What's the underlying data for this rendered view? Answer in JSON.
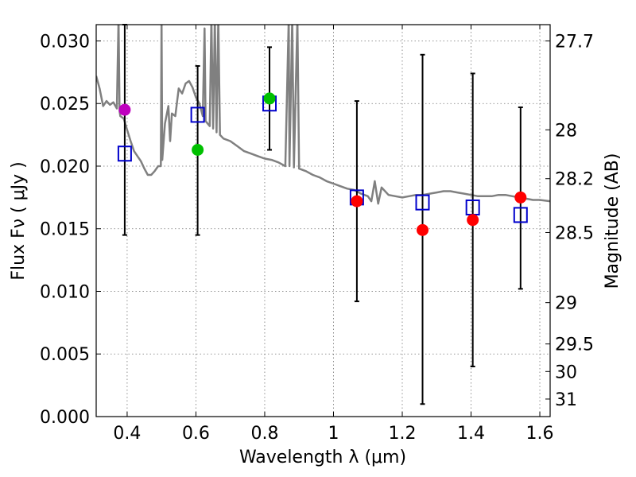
{
  "chart_data": {
    "type": "scatter",
    "title": "",
    "xlabel": "Wavelength  λ (μm)",
    "ylabel": "Flux  Fν  ( μJy )",
    "y2label": "Magnitude (AB)",
    "xlim": [
      0.31,
      1.63
    ],
    "ylim": [
      0.0,
      0.0313
    ],
    "grid": true,
    "xticks": [
      0.4,
      0.6,
      0.8,
      1.0,
      1.2,
      1.4,
      1.6
    ],
    "xtick_labels": [
      "0.4",
      "0.6",
      "0.8",
      "1",
      "1.2",
      "1.4",
      "1.6"
    ],
    "yticks": [
      0.0,
      0.005,
      0.01,
      0.015,
      0.02,
      0.025,
      0.03
    ],
    "ytick_labels": [
      "0.000",
      "0.005",
      "0.010",
      "0.015",
      "0.020",
      "0.025",
      "0.030"
    ],
    "mag_ticks": [
      {
        "label": "27.7",
        "flux": 0.03
      },
      {
        "label": "28",
        "flux": 0.0229
      },
      {
        "label": "28.2",
        "flux": 0.019
      },
      {
        "label": "28.5",
        "flux": 0.0147
      },
      {
        "label": "29",
        "flux": 0.0091
      },
      {
        "label": "29.5",
        "flux": 0.0058
      },
      {
        "label": "30",
        "flux": 0.0036
      },
      {
        "label": "31",
        "flux": 0.0014
      }
    ],
    "observed": [
      {
        "x": 0.393,
        "y": 0.0245,
        "color": "#bf00bf"
      },
      {
        "x": 0.605,
        "y": 0.0213,
        "color": "#00c000"
      },
      {
        "x": 0.814,
        "y": 0.0254,
        "color": "#00c000"
      },
      {
        "x": 1.068,
        "y": 0.0172,
        "color": "#ff0000"
      },
      {
        "x": 1.259,
        "y": 0.0149,
        "color": "#ff0000"
      },
      {
        "x": 1.405,
        "y": 0.0157,
        "color": "#ff0000"
      },
      {
        "x": 1.544,
        "y": 0.0175,
        "color": "#ff0000"
      }
    ],
    "errorbars": [
      {
        "x": 0.393,
        "low": 0.0145,
        "high": 0.0313
      },
      {
        "x": 0.605,
        "low": 0.0145,
        "high": 0.028
      },
      {
        "x": 0.814,
        "low": 0.0213,
        "high": 0.0295
      },
      {
        "x": 1.068,
        "low": 0.0092,
        "high": 0.0252
      },
      {
        "x": 1.259,
        "low": 0.001,
        "high": 0.0289
      },
      {
        "x": 1.405,
        "low": 0.004,
        "high": 0.0274
      },
      {
        "x": 1.544,
        "low": 0.0102,
        "high": 0.0247
      }
    ],
    "model_points": [
      {
        "x": 0.393,
        "y": 0.021
      },
      {
        "x": 0.605,
        "y": 0.0241
      },
      {
        "x": 0.814,
        "y": 0.025
      },
      {
        "x": 1.068,
        "y": 0.0175
      },
      {
        "x": 1.259,
        "y": 0.0171
      },
      {
        "x": 1.405,
        "y": 0.0167
      },
      {
        "x": 1.544,
        "y": 0.0161
      }
    ],
    "model_spectrum": [
      [
        0.31,
        0.0272
      ],
      [
        0.32,
        0.0262
      ],
      [
        0.33,
        0.0248
      ],
      [
        0.34,
        0.0252
      ],
      [
        0.35,
        0.0249
      ],
      [
        0.36,
        0.0251
      ],
      [
        0.37,
        0.0246
      ],
      [
        0.375,
        0.0318
      ],
      [
        0.378,
        0.0244
      ],
      [
        0.38,
        0.024
      ],
      [
        0.39,
        0.0238
      ],
      [
        0.4,
        0.0229
      ],
      [
        0.41,
        0.022
      ],
      [
        0.42,
        0.0212
      ],
      [
        0.43,
        0.0208
      ],
      [
        0.44,
        0.0204
      ],
      [
        0.45,
        0.0198
      ],
      [
        0.46,
        0.0193
      ],
      [
        0.47,
        0.0193
      ],
      [
        0.48,
        0.0196
      ],
      [
        0.49,
        0.02
      ],
      [
        0.498,
        0.02
      ],
      [
        0.5,
        0.0318
      ],
      [
        0.502,
        0.0205
      ],
      [
        0.51,
        0.0234
      ],
      [
        0.52,
        0.0248
      ],
      [
        0.525,
        0.022
      ],
      [
        0.53,
        0.0242
      ],
      [
        0.54,
        0.024
      ],
      [
        0.55,
        0.0262
      ],
      [
        0.56,
        0.0258
      ],
      [
        0.57,
        0.0266
      ],
      [
        0.58,
        0.0268
      ],
      [
        0.59,
        0.0263
      ],
      [
        0.6,
        0.0255
      ],
      [
        0.61,
        0.025
      ],
      [
        0.62,
        0.024
      ],
      [
        0.625,
        0.031
      ],
      [
        0.628,
        0.0236
      ],
      [
        0.64,
        0.0232
      ],
      [
        0.645,
        0.0318
      ],
      [
        0.65,
        0.023
      ],
      [
        0.655,
        0.0318
      ],
      [
        0.66,
        0.0227
      ],
      [
        0.665,
        0.0318
      ],
      [
        0.67,
        0.0225
      ],
      [
        0.68,
        0.0222
      ],
      [
        0.7,
        0.022
      ],
      [
        0.72,
        0.0216
      ],
      [
        0.74,
        0.0212
      ],
      [
        0.76,
        0.021
      ],
      [
        0.78,
        0.0208
      ],
      [
        0.8,
        0.0206
      ],
      [
        0.82,
        0.0205
      ],
      [
        0.84,
        0.0203
      ],
      [
        0.86,
        0.02
      ],
      [
        0.87,
        0.0318
      ],
      [
        0.872,
        0.02
      ],
      [
        0.88,
        0.0318
      ],
      [
        0.885,
        0.0199
      ],
      [
        0.895,
        0.0318
      ],
      [
        0.9,
        0.0198
      ],
      [
        0.92,
        0.0196
      ],
      [
        0.94,
        0.0193
      ],
      [
        0.96,
        0.0191
      ],
      [
        0.98,
        0.0188
      ],
      [
        1.0,
        0.0186
      ],
      [
        1.02,
        0.0184
      ],
      [
        1.04,
        0.0182
      ],
      [
        1.06,
        0.0181
      ],
      [
        1.08,
        0.0178
      ],
      [
        1.1,
        0.0176
      ],
      [
        1.11,
        0.0172
      ],
      [
        1.12,
        0.0188
      ],
      [
        1.13,
        0.017
      ],
      [
        1.14,
        0.0183
      ],
      [
        1.16,
        0.0177
      ],
      [
        1.18,
        0.0176
      ],
      [
        1.2,
        0.0175
      ],
      [
        1.22,
        0.0176
      ],
      [
        1.24,
        0.0177
      ],
      [
        1.26,
        0.0177
      ],
      [
        1.28,
        0.0178
      ],
      [
        1.3,
        0.0179
      ],
      [
        1.32,
        0.018
      ],
      [
        1.34,
        0.018
      ],
      [
        1.36,
        0.0179
      ],
      [
        1.38,
        0.0178
      ],
      [
        1.4,
        0.0177
      ],
      [
        1.42,
        0.0176
      ],
      [
        1.44,
        0.0176
      ],
      [
        1.46,
        0.0176
      ],
      [
        1.48,
        0.0177
      ],
      [
        1.5,
        0.0177
      ],
      [
        1.52,
        0.0176
      ],
      [
        1.54,
        0.0175
      ],
      [
        1.56,
        0.0174
      ],
      [
        1.58,
        0.0173
      ],
      [
        1.6,
        0.0173
      ],
      [
        1.63,
        0.0172
      ]
    ],
    "colors": {
      "spectrum": "#808080",
      "model_marker": "#0000cc",
      "errorbar": "#000000"
    }
  }
}
